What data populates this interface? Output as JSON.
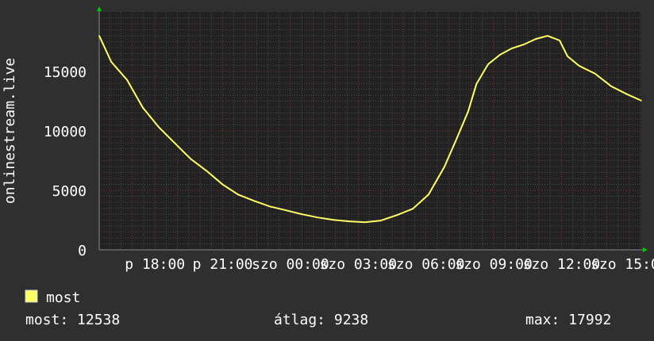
{
  "chart_data": {
    "type": "line",
    "ylabel": "onlinestream.live",
    "ylim": [
      0,
      20000
    ],
    "yticks": [
      0,
      5000,
      10000,
      15000
    ],
    "xrange": [
      "p 15:32",
      "szo 15:32"
    ],
    "xticks": [
      "p 18:00",
      "p 21:00",
      "szo 00:00",
      "szo 03:00",
      "szo 06:00",
      "szo 09:00",
      "szo 12:00",
      "szo 15:00"
    ],
    "grid": true,
    "colors": {
      "background": "#2f2f2f",
      "plot_background": "#222222",
      "line": "#ffff66",
      "major_grid": "#7a3333",
      "minor_grid": "#4a4a4a",
      "arrow": "#00cc00"
    },
    "series": [
      {
        "name": "most",
        "color": "#ffff66",
        "points": [
          [
            "p 15:32",
            17992
          ],
          [
            "p 16:04",
            15800
          ],
          [
            "p 16:46",
            14280
          ],
          [
            "p 17:28",
            11950
          ],
          [
            "p 18:11",
            10290
          ],
          [
            "p 18:53",
            8960
          ],
          [
            "p 19:35",
            7640
          ],
          [
            "p 20:17",
            6640
          ],
          [
            "p 20:59",
            5510
          ],
          [
            "p 21:41",
            4650
          ],
          [
            "p 22:23",
            4120
          ],
          [
            "p 23:05",
            3650
          ],
          [
            "p 23:48",
            3320
          ],
          [
            "szo 00:30",
            2990
          ],
          [
            "szo 01:12",
            2720
          ],
          [
            "szo 01:54",
            2520
          ],
          [
            "szo 02:36",
            2390
          ],
          [
            "szo 03:18",
            2320
          ],
          [
            "szo 04:00",
            2460
          ],
          [
            "szo 04:43",
            2920
          ],
          [
            "szo 05:25",
            3450
          ],
          [
            "szo 06:07",
            4650
          ],
          [
            "szo 06:49",
            6970
          ],
          [
            "szo 07:21",
            9300
          ],
          [
            "szo 07:52",
            11620
          ],
          [
            "szo 08:14",
            13940
          ],
          [
            "szo 08:45",
            15600
          ],
          [
            "szo 09:17",
            16400
          ],
          [
            "szo 09:48",
            16930
          ],
          [
            "szo 10:20",
            17260
          ],
          [
            "szo 10:52",
            17730
          ],
          [
            "szo 11:23",
            17990
          ],
          [
            "szo 11:55",
            17600
          ],
          [
            "szo 12:16",
            16270
          ],
          [
            "szo 12:47",
            15470
          ],
          [
            "szo 13:29",
            14810
          ],
          [
            "szo 14:12",
            13750
          ],
          [
            "szo 14:54",
            13080
          ],
          [
            "szo 15:32",
            12538
          ]
        ]
      }
    ],
    "legend": {
      "label": "most",
      "position": "bottom-left"
    },
    "stats": {
      "current": "most: 12538",
      "average": "átlag: 9238",
      "max": "max: 17992"
    }
  }
}
